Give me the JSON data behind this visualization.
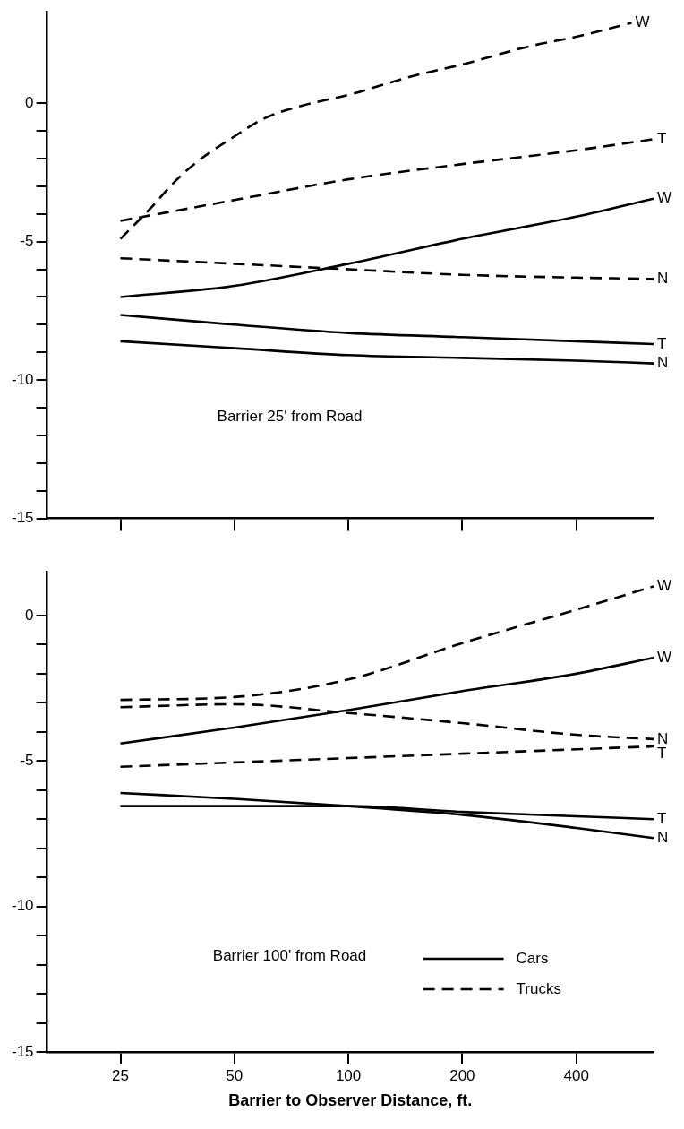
{
  "chart_data": [
    {
      "type": "line",
      "title": "Barrier 25' from Road",
      "log": "x",
      "tick_labels": "y",
      "xlim": [
        16,
        640
      ],
      "xticks": [
        {
          "value": 25,
          "label": null
        },
        {
          "value": 50,
          "label": null
        },
        {
          "value": 100,
          "label": null
        },
        {
          "value": 200,
          "label": null
        },
        {
          "value": 400,
          "label": null
        }
      ],
      "ylim": [
        -15,
        3.3
      ],
      "yticks": [
        -15,
        {
          "value": -14,
          "label": null
        },
        {
          "value": -13,
          "label": null
        },
        {
          "value": -12,
          "label": null
        },
        {
          "value": -11,
          "label": null
        },
        -10,
        {
          "value": -9,
          "label": null
        },
        {
          "value": -8,
          "label": null
        },
        {
          "value": -7,
          "label": null
        },
        {
          "value": -6,
          "label": null
        },
        -5,
        {
          "value": -4,
          "label": null
        },
        {
          "value": -3,
          "label": null
        },
        {
          "value": -2,
          "label": null
        },
        {
          "value": -1,
          "label": null
        },
        0
      ],
      "series": [
        {
          "name": "W",
          "color": "#000000",
          "line_style": "solid",
          "x": [
            25,
            50,
            100,
            200,
            400,
            640
          ],
          "values": [
            -7.0,
            -6.6,
            -5.8,
            -4.9,
            -4.1,
            -3.45
          ]
        },
        {
          "name": "T",
          "color": "#000000",
          "line_style": "solid",
          "x": [
            25,
            50,
            100,
            200,
            400,
            640
          ],
          "values": [
            -7.65,
            -8.0,
            -8.3,
            -8.45,
            -8.6,
            -8.7
          ]
        },
        {
          "name": "N",
          "color": "#000000",
          "line_style": "solid",
          "x": [
            25,
            50,
            100,
            200,
            400,
            640
          ],
          "values": [
            -8.6,
            -8.85,
            -9.1,
            -9.2,
            -9.3,
            -9.4
          ]
        },
        {
          "name": "W",
          "color": "#000000",
          "line_style": "dashed",
          "x": [
            25,
            30,
            35,
            40,
            50,
            60,
            75,
            100,
            150,
            200,
            300,
            400,
            560
          ],
          "values": [
            -4.9,
            -3.8,
            -2.8,
            -2.1,
            -1.2,
            -0.55,
            -0.1,
            0.3,
            1.0,
            1.4,
            2.05,
            2.4,
            2.9
          ]
        },
        {
          "name": "T",
          "color": "#000000",
          "line_style": "dashed",
          "x": [
            25,
            50,
            100,
            200,
            400,
            640
          ],
          "values": [
            -4.25,
            -3.5,
            -2.75,
            -2.2,
            -1.7,
            -1.3
          ]
        },
        {
          "name": "N",
          "color": "#000000",
          "line_style": "dashed",
          "x": [
            25,
            50,
            100,
            200,
            400,
            640
          ],
          "values": [
            -5.6,
            -5.8,
            -6.0,
            -6.2,
            -6.3,
            -6.35
          ]
        }
      ]
    },
    {
      "type": "line",
      "title": "Barrier 100' from Road",
      "xlabel": "Barrier to Observer Distance, ft.",
      "log": "x",
      "xlim": [
        16,
        640
      ],
      "xticks": [
        25,
        50,
        100,
        200,
        400
      ],
      "ylim": [
        -15,
        1.5
      ],
      "yticks": [
        -15,
        {
          "value": -14,
          "label": null
        },
        {
          "value": -13,
          "label": null
        },
        {
          "value": -12,
          "label": null
        },
        {
          "value": -11,
          "label": null
        },
        -10,
        {
          "value": -9,
          "label": null
        },
        {
          "value": -8,
          "label": null
        },
        {
          "value": -7,
          "label": null
        },
        {
          "value": -6,
          "label": null
        },
        -5,
        {
          "value": -4,
          "label": null
        },
        {
          "value": -3,
          "label": null
        },
        {
          "value": -2,
          "label": null
        },
        {
          "value": -1,
          "label": null
        },
        0
      ],
      "annotations": [
        "Cars",
        "Trucks"
      ],
      "series": [
        {
          "name": "W",
          "color": "#000000",
          "line_style": "solid",
          "x": [
            25,
            50,
            100,
            200,
            400,
            640
          ],
          "values": [
            -4.4,
            -3.85,
            -3.25,
            -2.6,
            -2.0,
            -1.45
          ]
        },
        {
          "name": "T",
          "color": "#000000",
          "line_style": "solid",
          "x": [
            25,
            50,
            100,
            200,
            400,
            640
          ],
          "values": [
            -6.55,
            -6.55,
            -6.55,
            -6.75,
            -6.9,
            -7.0
          ]
        },
        {
          "name": "N",
          "color": "#000000",
          "line_style": "solid",
          "x": [
            25,
            50,
            100,
            200,
            400,
            640
          ],
          "values": [
            -6.1,
            -6.3,
            -6.55,
            -6.85,
            -7.3,
            -7.65
          ]
        },
        {
          "name": "W",
          "color": "#000000",
          "line_style": "dashed",
          "x": [
            25,
            50,
            100,
            200,
            400,
            640
          ],
          "values": [
            -2.9,
            -2.8,
            -2.2,
            -0.95,
            0.2,
            1.0
          ]
        },
        {
          "name": "N",
          "color": "#000000",
          "line_style": "dashed",
          "x": [
            25,
            50,
            100,
            200,
            400,
            640
          ],
          "values": [
            -3.15,
            -3.05,
            -3.35,
            -3.7,
            -4.1,
            -4.25
          ]
        },
        {
          "name": "T",
          "color": "#000000",
          "line_style": "dashed",
          "x": [
            25,
            50,
            100,
            200,
            400,
            640
          ],
          "values": [
            -5.2,
            -5.05,
            -4.9,
            -4.75,
            -4.6,
            -4.5
          ]
        }
      ]
    }
  ]
}
